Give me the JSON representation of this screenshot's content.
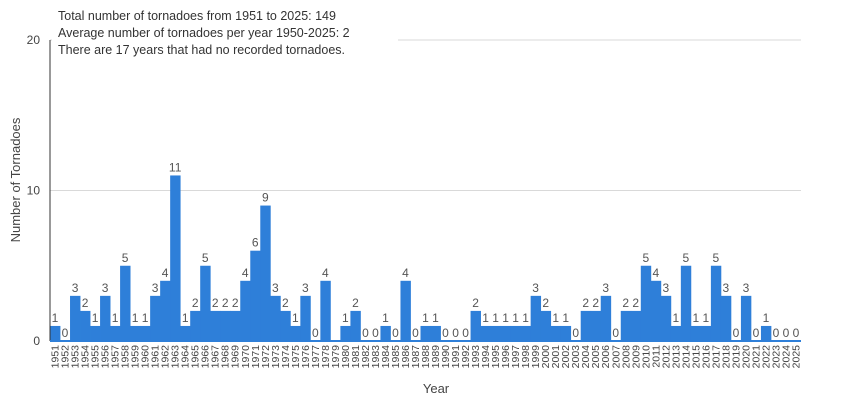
{
  "chart_data": {
    "type": "bar",
    "annotations": [
      "Total number of tornadoes from 1951 to 2025: 149",
      "Average number of tornadoes per year 1950-2025: 2",
      "There are 17 years that had no recorded tornadoes."
    ],
    "xlabel": "Year",
    "ylabel": "Number of Tornadoes",
    "ylim": [
      0,
      20
    ],
    "yticks": [
      0,
      10,
      20
    ],
    "grid": true,
    "legend": "none",
    "bar_color": "#2e7fd9",
    "categories": [
      "1951",
      "1952",
      "1953",
      "1954",
      "1955",
      "1956",
      "1957",
      "1958",
      "1959",
      "1960",
      "1961",
      "1962",
      "1963",
      "1964",
      "1965",
      "1966",
      "1967",
      "1968",
      "1969",
      "1970",
      "1971",
      "1972",
      "1973",
      "1974",
      "1975",
      "1976",
      "1977",
      "1978",
      "1979",
      "1980",
      "1981",
      "1982",
      "1983",
      "1984",
      "1985",
      "1986",
      "1987",
      "1988",
      "1989",
      "1990",
      "1991",
      "1992",
      "1993",
      "1994",
      "1995",
      "1996",
      "1997",
      "1998",
      "1999",
      "2000",
      "2001",
      "2002",
      "2003",
      "2004",
      "2005",
      "2006",
      "2007",
      "2008",
      "2009",
      "2010",
      "2011",
      "2012",
      "2013",
      "2014",
      "2015",
      "2016",
      "2017",
      "2018",
      "2019",
      "2020",
      "2021",
      "2022",
      "2023",
      "2024",
      "2025"
    ],
    "values": [
      1,
      0,
      3,
      2,
      1,
      3,
      1,
      5,
      1,
      1,
      3,
      4,
      11,
      1,
      2,
      5,
      2,
      2,
      2,
      4,
      6,
      9,
      3,
      2,
      1,
      3,
      0,
      4,
      0,
      1,
      2,
      0,
      0,
      1,
      0,
      4,
      0,
      1,
      1,
      0,
      0,
      0,
      2,
      1,
      1,
      1,
      1,
      1,
      3,
      2,
      1,
      1,
      0,
      2,
      2,
      3,
      0,
      2,
      2,
      5,
      4,
      3,
      1,
      5,
      1,
      1,
      5,
      3,
      0,
      3,
      0,
      1,
      0,
      0,
      0
    ],
    "data_labels": [
      "1",
      "0",
      "3",
      "2",
      "1",
      "3",
      "1",
      "5",
      "1",
      "1",
      "3",
      "4",
      "11",
      "1",
      "2",
      "5",
      "2",
      "2",
      "2",
      "4",
      "6",
      "9",
      "3",
      "2",
      "1",
      "3",
      "0",
      "4",
      "",
      "1",
      "2",
      "0",
      "0",
      "1",
      "0",
      "4",
      "0",
      "1",
      "1",
      "0",
      "0",
      "0",
      "2",
      "1",
      "1",
      "1",
      "1",
      "1",
      "3",
      "2",
      "1",
      "1",
      "0",
      "2",
      "2",
      "3",
      "0",
      "2",
      "2",
      "5",
      "4",
      "3",
      "1",
      "5",
      "1",
      "1",
      "5",
      "3",
      "0",
      "3",
      "0",
      "1",
      "0",
      "0",
      "0"
    ]
  }
}
